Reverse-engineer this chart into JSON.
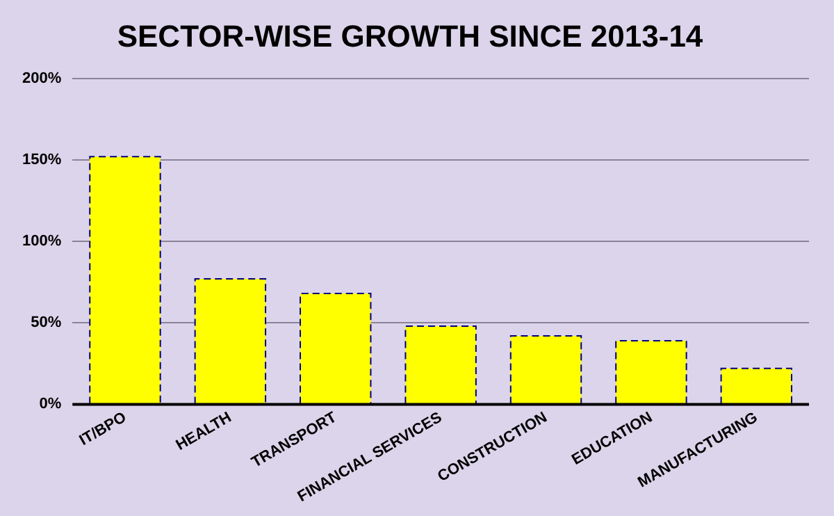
{
  "chart_data": {
    "type": "bar",
    "title": "SECTOR-WISE GROWTH SINCE 2013-14",
    "categories": [
      "IT/BPO",
      "HEALTH",
      "TRANSPORT",
      "FINANCIAL SERVICES",
      "CONSTRUCTION",
      "EDUCATION",
      "MANUFACTURING"
    ],
    "values": [
      152,
      77,
      68,
      48,
      42,
      39,
      22
    ],
    "color": "#ffff00",
    "ylim": [
      0,
      200
    ],
    "yticks": [
      {
        "value": 0,
        "label": "0%"
      },
      {
        "value": 50,
        "label": "50%"
      },
      {
        "value": 100,
        "label": "100%"
      },
      {
        "value": 150,
        "label": "150%"
      },
      {
        "value": 200,
        "label": "200%"
      }
    ],
    "grid": "y",
    "line_style": "dashed"
  }
}
